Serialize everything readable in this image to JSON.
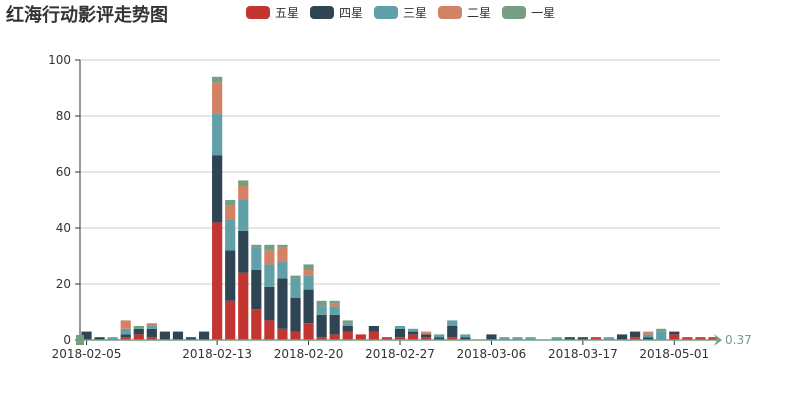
{
  "title": "红海行动影评走势图",
  "colors": {
    "five": "#c23531",
    "four": "#2f4554",
    "three": "#61a0a8",
    "two": "#d48265",
    "one": "#749f83",
    "axis": "#333333",
    "grid": "#cccccc",
    "slider": "#749f83"
  },
  "chart_data": {
    "type": "bar",
    "stacked": true,
    "title": "红海行动影评走势图",
    "ylim": [
      0,
      100
    ],
    "yticks": [
      0,
      20,
      40,
      60,
      80,
      100
    ],
    "grid": "horizontal",
    "legend_position": "top",
    "xtick_labels": [
      {
        "index": 0,
        "label": "2018-02-05"
      },
      {
        "index": 10,
        "label": "2018-02-13"
      },
      {
        "index": 17,
        "label": "2018-02-20"
      },
      {
        "index": 24,
        "label": "2018-02-27"
      },
      {
        "index": 31,
        "label": "2018-03-06"
      },
      {
        "index": 38,
        "label": "2018-03-17"
      },
      {
        "index": 45,
        "label": "2018-05-01"
      }
    ],
    "slider_end_label": "0.37",
    "series": [
      {
        "name": "五星",
        "values": [
          0,
          0,
          0,
          1,
          2,
          1,
          0,
          0,
          0,
          0,
          42,
          14,
          24,
          11,
          7,
          4,
          3,
          6,
          1,
          2,
          3,
          2,
          3,
          1,
          1,
          2,
          1,
          0,
          1,
          0,
          0,
          0,
          0,
          0,
          0,
          0,
          0,
          0,
          0,
          1,
          0,
          0,
          1,
          0,
          0,
          2,
          1,
          1,
          1
        ]
      },
      {
        "name": "四星",
        "values": [
          3,
          1,
          0,
          1,
          2,
          3,
          3,
          3,
          1,
          3,
          24,
          18,
          15,
          14,
          12,
          18,
          12,
          12,
          8,
          7,
          2,
          0,
          2,
          0,
          3,
          1,
          1,
          1,
          4,
          1,
          0,
          2,
          0,
          0,
          0,
          0,
          0,
          1,
          1,
          0,
          0,
          2,
          2,
          1,
          0,
          1,
          0,
          0,
          0
        ]
      },
      {
        "name": "三星",
        "values": [
          0,
          0,
          1,
          2,
          0,
          1,
          0,
          0,
          0,
          0,
          15,
          11,
          11,
          8,
          8,
          6,
          7,
          5,
          3,
          3,
          1,
          0,
          0,
          0,
          1,
          1,
          0,
          1,
          2,
          1,
          0,
          0,
          1,
          1,
          1,
          0,
          1,
          0,
          0,
          0,
          1,
          0,
          0,
          1,
          3,
          0,
          0,
          0,
          0
        ]
      },
      {
        "name": "二星",
        "values": [
          0,
          0,
          0,
          3,
          0,
          1,
          0,
          0,
          0,
          0,
          11,
          5,
          5,
          0,
          5,
          5,
          0,
          2,
          0,
          1,
          0,
          0,
          0,
          0,
          0,
          0,
          1,
          0,
          0,
          0,
          0,
          0,
          0,
          0,
          0,
          0,
          0,
          0,
          0,
          0,
          0,
          0,
          0,
          1,
          0,
          0,
          0,
          0,
          0
        ]
      },
      {
        "name": "一星",
        "values": [
          0,
          0,
          0,
          0,
          1,
          0,
          0,
          0,
          0,
          0,
          2,
          2,
          2,
          1,
          2,
          1,
          1,
          2,
          2,
          1,
          1,
          0,
          0,
          0,
          0,
          0,
          0,
          0,
          0,
          0,
          0,
          0,
          0,
          0,
          0,
          0,
          0,
          0,
          0,
          0,
          0,
          0,
          0,
          0,
          1,
          0,
          0,
          0,
          0
        ]
      }
    ]
  }
}
